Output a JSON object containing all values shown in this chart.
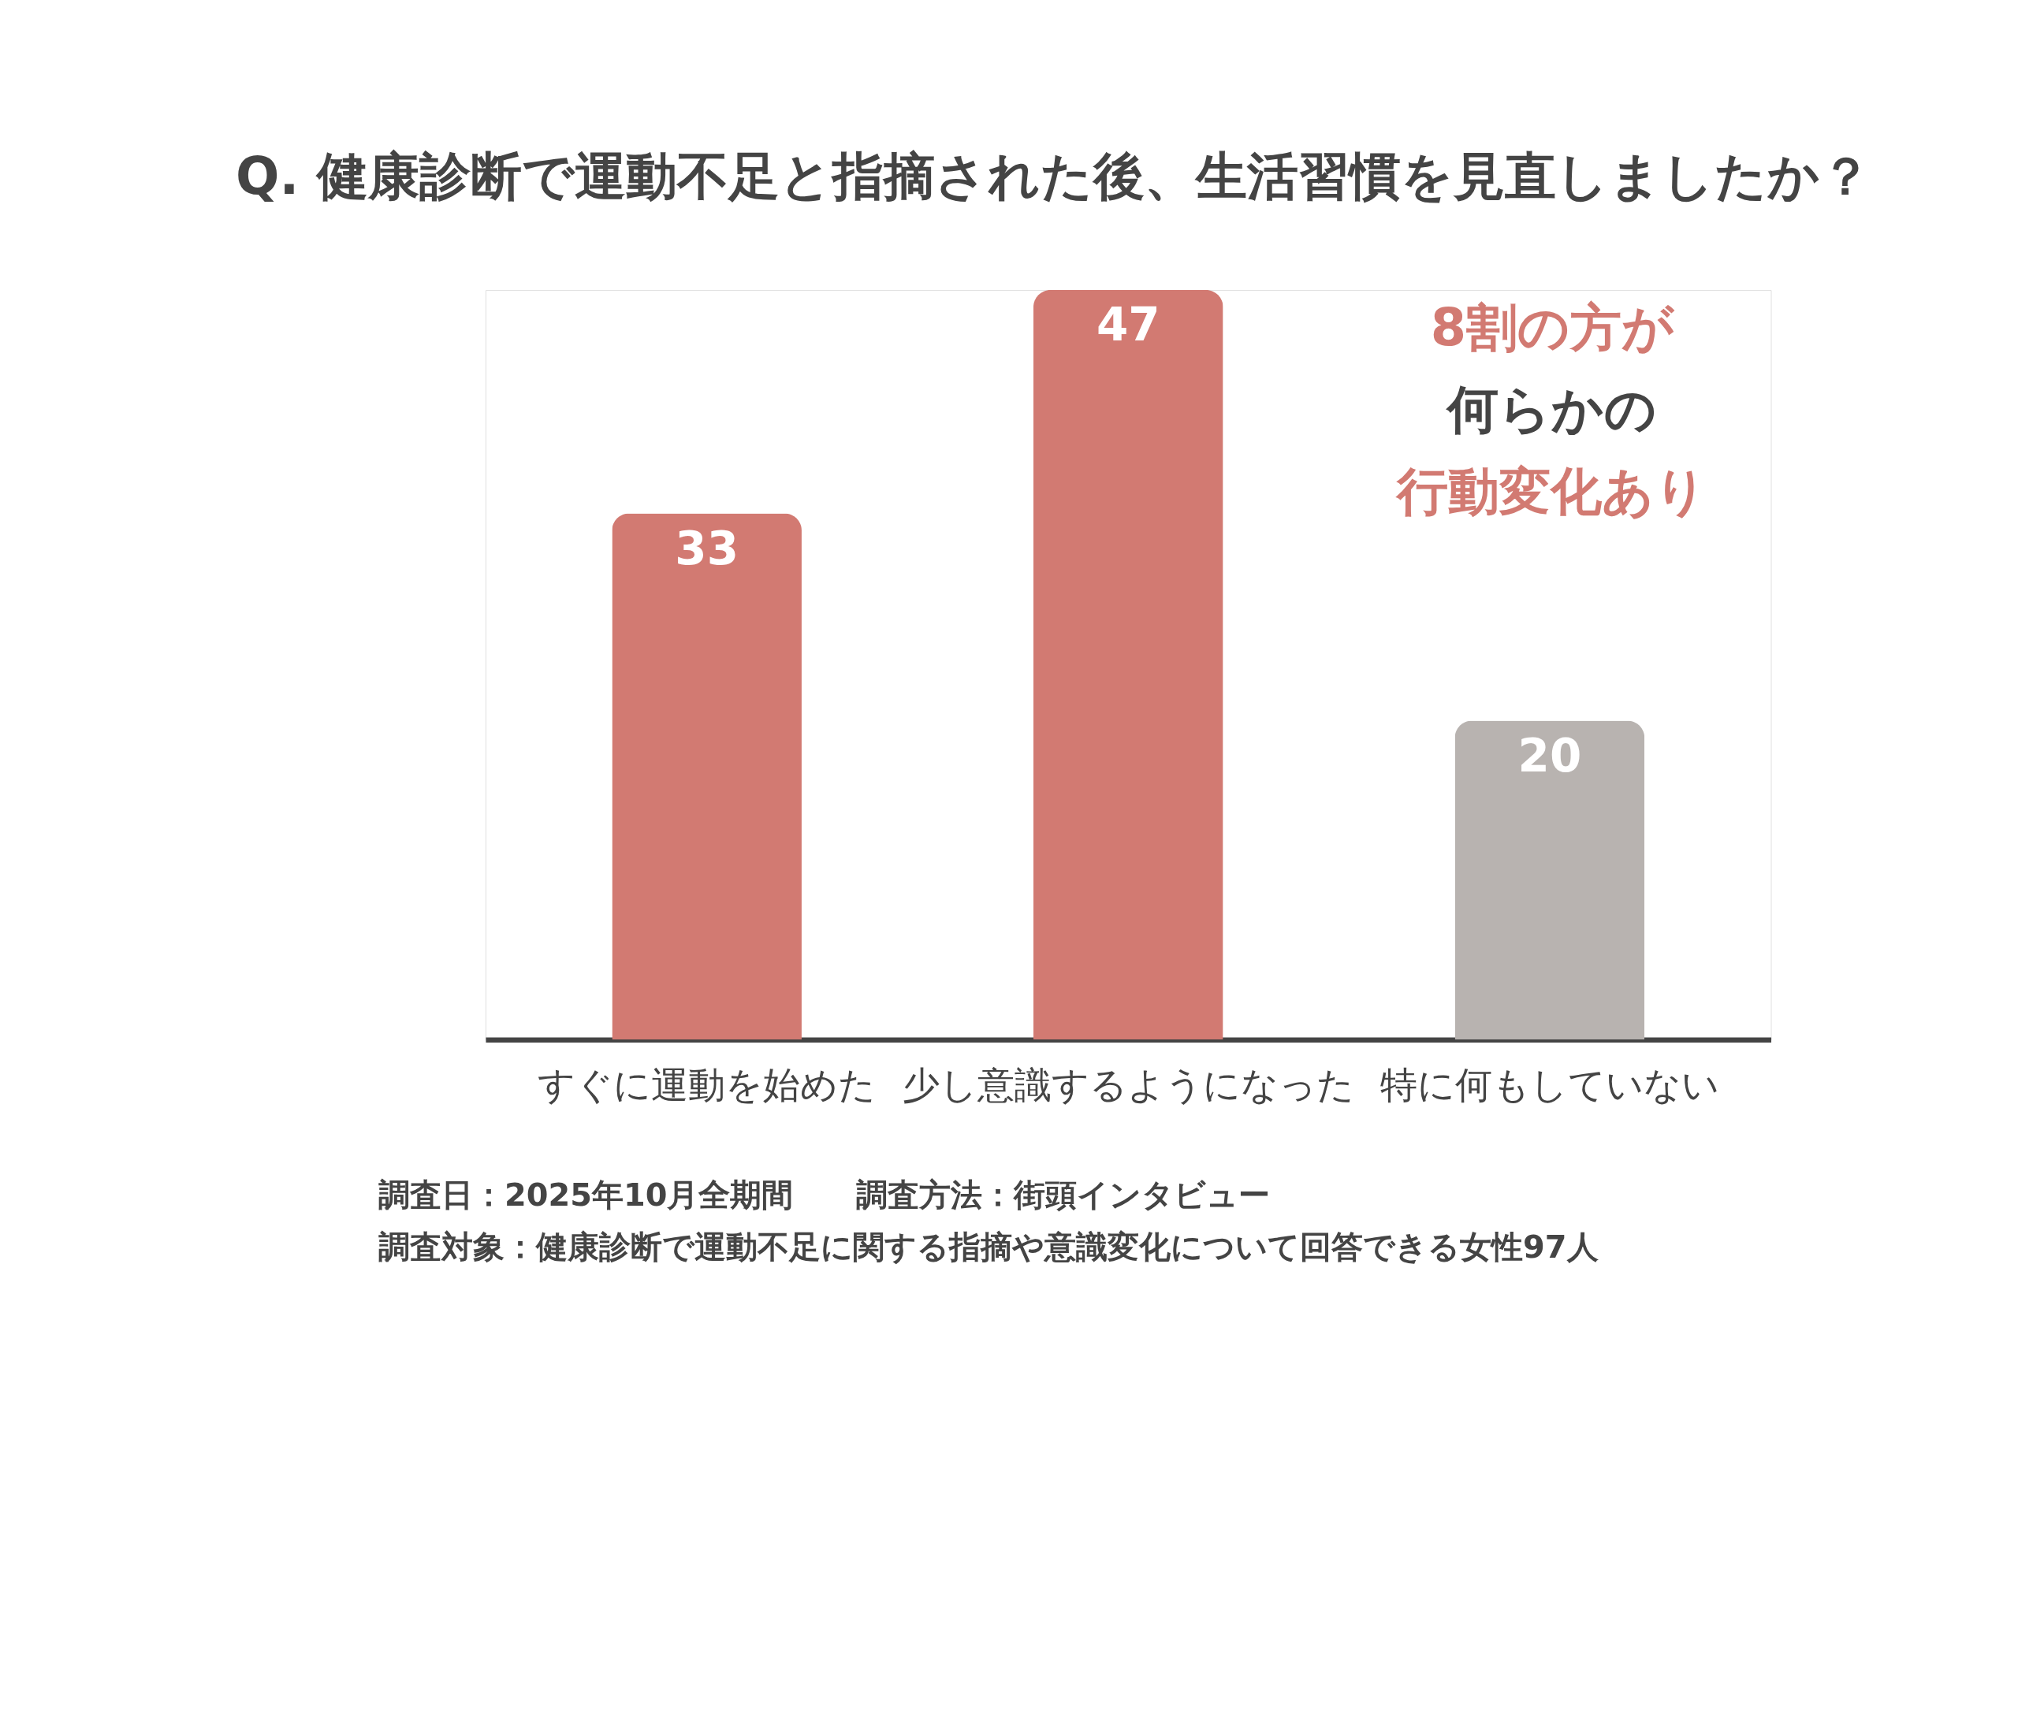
{
  "chart_data": {
    "type": "bar",
    "title": "Q. 健康診断で運動不足と指摘された後、生活習慣を見直しましたか？",
    "categories": [
      "すぐに運動を始めた",
      "少し意識するようになった",
      "特に何もしていない"
    ],
    "values": [
      33,
      47,
      20
    ],
    "colors": [
      "#d27a72",
      "#d27a72",
      "#b8b3b0"
    ],
    "data_labels": true,
    "grid": false,
    "annotations": [
      "8割の方が",
      "何らかの",
      "行動変化あり",
      "調査日：2025年10月全期間　　調査方法：街頭インタビュー",
      "調査対象：健康診断で運動不足に関する指摘や意識変化について回答できる女性97人"
    ]
  }
}
